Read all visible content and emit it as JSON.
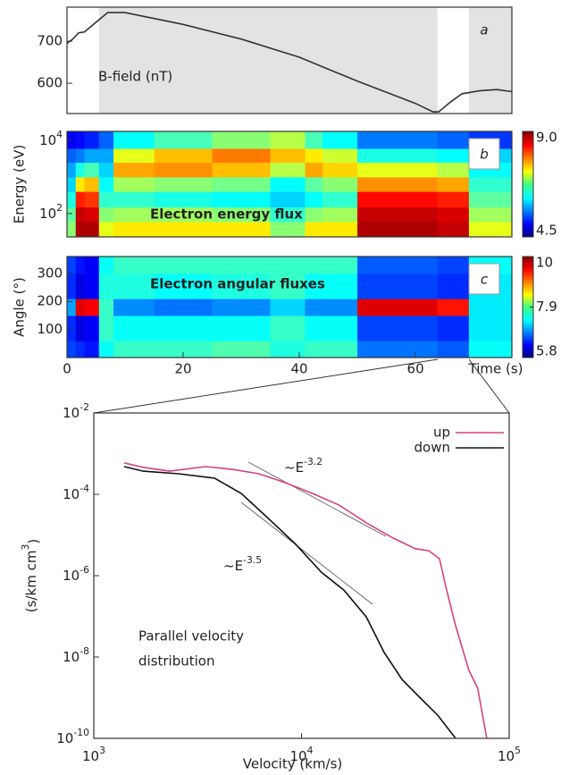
{
  "chart_data": [
    {
      "type": "line",
      "label": "a",
      "title": "B-field  (nT)",
      "color": "#333333",
      "x": [
        0,
        1,
        2,
        3,
        5,
        7,
        10,
        20,
        30,
        40,
        50,
        60,
        63,
        64,
        66,
        68,
        71,
        74,
        76.6
      ],
      "values": [
        695,
        705,
        720,
        722,
        745,
        768,
        768,
        740,
        705,
        662,
        605,
        552,
        532,
        532,
        555,
        575,
        582,
        585,
        580
      ],
      "shaded": [
        [
          5.5,
          63.8
        ],
        [
          69.2,
          76.6
        ]
      ],
      "xlim": [
        0,
        76.6
      ],
      "ylim": [
        528,
        781
      ],
      "yticks": [
        600,
        700
      ]
    },
    {
      "type": "heatmap",
      "label": "b",
      "title": "Electron energy flux",
      "ylabel": "Energy (eV)",
      "yscale": "log",
      "x_edges": [
        0,
        1.5,
        3,
        5.5,
        8,
        15,
        25,
        35,
        41,
        44,
        50,
        63.8,
        69.2,
        76.6
      ],
      "y_edges": [
        23,
        60,
        150,
        400,
        1000,
        2500,
        6000,
        17500
      ],
      "z": [
        [
          6.8,
          8.8,
          8.8,
          7.2,
          7.4,
          7.4,
          7.4,
          6.8,
          7.4,
          7.4,
          8.8,
          8.7,
          7.2
        ],
        [
          6.6,
          8.7,
          8.6,
          6.8,
          6.9,
          6.9,
          6.8,
          6.4,
          6.8,
          6.9,
          8.7,
          8.6,
          6.9
        ],
        [
          6.3,
          8.3,
          8.2,
          6.4,
          6.4,
          6.3,
          6.2,
          6.0,
          6.2,
          6.4,
          8.4,
          8.3,
          6.6
        ],
        [
          6.0,
          7.4,
          7.6,
          6.2,
          6.9,
          6.8,
          6.7,
          6.2,
          6.6,
          6.8,
          7.8,
          7.7,
          6.4
        ],
        [
          5.8,
          6.3,
          6.5,
          6.0,
          7.7,
          7.8,
          7.6,
          7.0,
          7.7,
          7.5,
          7.2,
          7.0,
          6.2
        ],
        [
          5.5,
          5.6,
          5.8,
          5.8,
          7.2,
          7.6,
          7.9,
          7.6,
          7.4,
          7.1,
          6.3,
          6.2,
          6.0
        ],
        [
          5.0,
          5.1,
          5.2,
          5.5,
          6.2,
          6.5,
          6.8,
          7.0,
          6.5,
          6.2,
          5.6,
          5.5,
          5.3
        ]
      ],
      "xlim": [
        0,
        76.6
      ],
      "ylim": [
        23,
        17500
      ],
      "yticks": [
        {
          "value": 100,
          "label": "10^{2}"
        },
        {
          "value": 10000,
          "label": "10^{4}"
        }
      ],
      "clim": [
        4.5,
        9.0
      ],
      "cticks": [
        4.5,
        {
          "value": 9,
          "label": "9.0"
        }
      ]
    },
    {
      "type": "heatmap",
      "label": "c",
      "title": "Electron angular fluxes",
      "ylabel": "Angle (°)",
      "x_edges": [
        0,
        1.5,
        3,
        5.5,
        8,
        15,
        25,
        35,
        41,
        44,
        50,
        63.8,
        69.2,
        76.6
      ],
      "y_edges": [
        0,
        60,
        150,
        210,
        300,
        360
      ],
      "z": [
        [
          6.6,
          6.5,
          6.4,
          7.4,
          7.6,
          7.6,
          7.7,
          7.5,
          7.6,
          7.6,
          6.8,
          6.7,
          7.4
        ],
        [
          6.5,
          6.2,
          6.3,
          7.6,
          7.4,
          7.4,
          7.4,
          7.6,
          7.4,
          7.4,
          6.6,
          6.5,
          7.3
        ],
        [
          7.0,
          9.6,
          9.5,
          7.6,
          6.9,
          6.8,
          6.9,
          7.2,
          6.9,
          6.9,
          9.6,
          9.4,
          7.3
        ],
        [
          6.5,
          6.2,
          6.3,
          7.5,
          7.5,
          7.4,
          7.5,
          7.6,
          7.4,
          7.4,
          6.6,
          6.5,
          7.3
        ],
        [
          6.6,
          6.4,
          6.3,
          7.4,
          7.6,
          7.6,
          7.6,
          7.6,
          7.6,
          7.6,
          6.7,
          6.6,
          7.4
        ]
      ],
      "xlim": [
        0,
        76.6
      ],
      "ylim": [
        0,
        360
      ],
      "yticks": [
        100,
        200,
        300
      ],
      "xticks": [
        0,
        20,
        40,
        60
      ],
      "xlabel": "Time (s)",
      "clim": [
        5.8,
        10
      ],
      "cticks": [
        5.8,
        7.9,
        10
      ]
    },
    {
      "type": "line",
      "xscale": "log",
      "yscale": "log",
      "xlabel": "Velocity  (km/s)",
      "ylabel": "(s/km cm^{3})",
      "legend": "upper right",
      "series": [
        {
          "name": "up",
          "color": "#d6407f",
          "x": [
            1400,
            1730,
            2320,
            3450,
            4650,
            6250,
            8410,
            11300,
            15200,
            20500,
            27600,
            35300,
            41000,
            46200,
            50000,
            55200,
            64000,
            70600,
            78000
          ],
          "values": [
            0.00059,
            0.00046,
            0.00037,
            0.00048,
            0.00041,
            0.00032,
            0.00019,
            0.000105,
            5.4e-05,
            2e-05,
            8.4e-06,
            4.6e-06,
            4.1e-06,
            2.6e-06,
            4.4e-07,
            5.9e-08,
            4.7e-09,
            1.7e-09,
            1e-10
          ]
        },
        {
          "name": "down",
          "color": "#111111",
          "x": [
            1400,
            1730,
            2560,
            3810,
            5130,
            6900,
            9290,
            12500,
            16000,
            20500,
            25000,
            30500,
            37200,
            45300,
            52500,
            55200
          ],
          "values": [
            0.00048,
            0.00037,
            0.00032,
            0.00025,
            0.000105,
            2.6e-05,
            6.2e-06,
            1.2e-06,
            4.4e-07,
            9.7e-08,
            1.3e-08,
            2.8e-09,
            1e-09,
            3.7e-10,
            1.4e-10,
            1e-10
          ]
        }
      ],
      "xlim": [
        1000,
        100000
      ],
      "ylim": [
        1e-10,
        0.01
      ],
      "xticks": [
        {
          "value": 1000,
          "label": "10^{3}"
        },
        {
          "value": 10000,
          "label": "10^{4}"
        },
        {
          "value": 100000,
          "label": "10^{5}"
        }
      ],
      "yticks": [
        {
          "value": 1e-10,
          "label": "10^{-10}"
        },
        {
          "value": 1e-08,
          "label": "10^{-8}"
        },
        {
          "value": 1e-06,
          "label": "10^{-6}"
        },
        {
          "value": 0.0001,
          "label": "10^{-4}"
        },
        {
          "value": 0.01,
          "label": "10^{-2}"
        }
      ],
      "annotations": [
        "~E^{-3.2}",
        "~E^{-3.5}",
        "Parallel velocity",
        "distribution"
      ]
    }
  ]
}
